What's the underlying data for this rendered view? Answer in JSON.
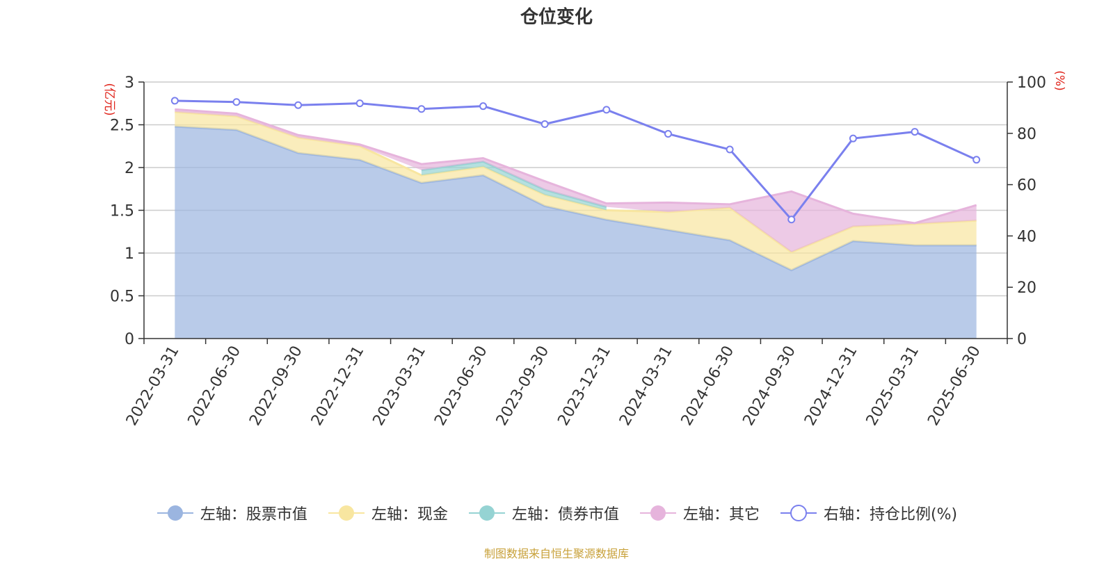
{
  "chart_data": {
    "type": "area",
    "title": "仓位变化",
    "categories": [
      "2022-03-31",
      "2022-06-30",
      "2022-09-30",
      "2022-12-31",
      "2023-03-31",
      "2023-06-30",
      "2023-09-30",
      "2023-12-31",
      "2024-03-31",
      "2024-06-30",
      "2024-09-30",
      "2024-12-31",
      "2025-03-31",
      "2025-06-30"
    ],
    "left_axis": {
      "label": "(亿元)",
      "range": [
        0,
        3
      ],
      "ticks": [
        "0",
        "0.5",
        "1",
        "1.5",
        "2",
        "2.5",
        "3"
      ]
    },
    "right_axis": {
      "label": "(%)",
      "range": [
        0,
        100
      ],
      "ticks": [
        "0",
        "20",
        "40",
        "60",
        "80",
        "100"
      ]
    },
    "grid": true,
    "legend_position": "bottom",
    "series": [
      {
        "name": "左轴：股票市值",
        "type": "area",
        "axis": "left",
        "stacked": true,
        "color": "#9bb5e0",
        "values": [
          2.48,
          2.44,
          2.17,
          2.09,
          1.82,
          1.91,
          1.55,
          1.39,
          1.27,
          1.15,
          0.8,
          1.14,
          1.09,
          1.09
        ]
      },
      {
        "name": "左轴：现金",
        "type": "area",
        "axis": "left",
        "stacked": true,
        "color": "#f8e6a0",
        "values": [
          0.17,
          0.16,
          0.18,
          0.16,
          0.09,
          0.1,
          0.13,
          0.11,
          0.21,
          0.38,
          0.21,
          0.17,
          0.25,
          0.29
        ]
      },
      {
        "name": "左轴：债券市值",
        "type": "area",
        "axis": "left",
        "stacked": true,
        "color": "#95d3d3",
        "values": [
          null,
          null,
          null,
          null,
          0.06,
          0.06,
          0.06,
          0.04,
          null,
          null,
          null,
          null,
          null,
          null
        ]
      },
      {
        "name": "左轴：其它",
        "type": "area",
        "axis": "left",
        "stacked": true,
        "color": "#e6b4dc",
        "values": [
          0.03,
          0.03,
          0.03,
          0.02,
          0.07,
          0.04,
          0.1,
          0.04,
          0.11,
          0.04,
          0.71,
          0.15,
          0.01,
          0.18
        ]
      },
      {
        "name": "右轴：持仓比例(%)",
        "type": "line",
        "axis": "right",
        "color": "#7a80ee",
        "values": [
          92.7,
          92.2,
          91.0,
          91.7,
          89.5,
          90.6,
          83.6,
          89.2,
          79.8,
          73.7,
          46.4,
          78.0,
          80.6,
          69.7
        ]
      }
    ],
    "source_note": "制图数据来自恒生聚源数据库"
  }
}
